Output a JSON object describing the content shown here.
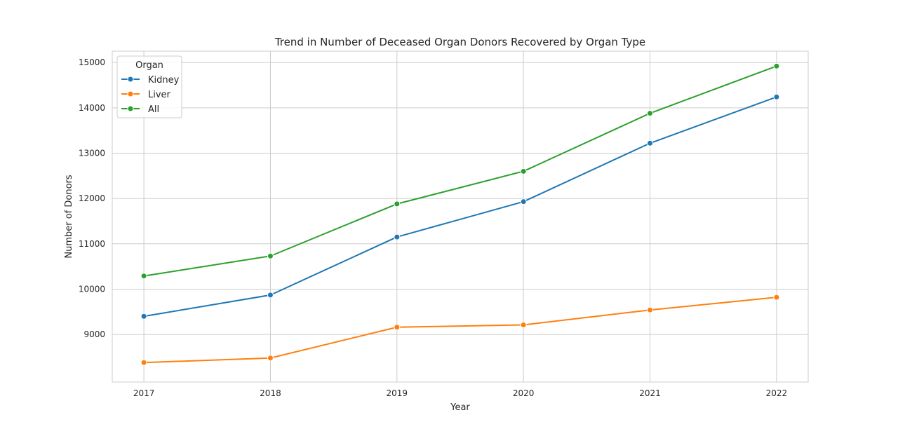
{
  "chart_data": {
    "type": "line",
    "title": "Trend in Number of Deceased Organ Donors Recovered by Organ Type",
    "xlabel": "Year",
    "ylabel": "Number of Donors",
    "x": [
      2017,
      2018,
      2019,
      2020,
      2021,
      2022
    ],
    "x_tick_labels": [
      "2017",
      "2018",
      "2019",
      "2020",
      "2021",
      "2022"
    ],
    "y_ticks": [
      9000,
      10000,
      11000,
      12000,
      13000,
      14000,
      15000
    ],
    "y_tick_labels": [
      "9000",
      "10000",
      "11000",
      "12000",
      "13000",
      "14000",
      "15000"
    ],
    "xlim": [
      2016.75,
      2022.25
    ],
    "ylim": [
      7950,
      15250
    ],
    "grid": true,
    "legend": {
      "title": "Organ",
      "placement": "top-left"
    },
    "series": [
      {
        "name": "Kidney",
        "color": "#1f77b4",
        "values": [
          9400,
          9870,
          11150,
          11930,
          13220,
          14240
        ]
      },
      {
        "name": "Liver",
        "color": "#ff7f0e",
        "values": [
          8380,
          8480,
          9160,
          9210,
          9540,
          9820
        ]
      },
      {
        "name": "All",
        "color": "#2ca02c",
        "values": [
          10290,
          10730,
          11880,
          12600,
          13880,
          14920
        ]
      }
    ]
  }
}
